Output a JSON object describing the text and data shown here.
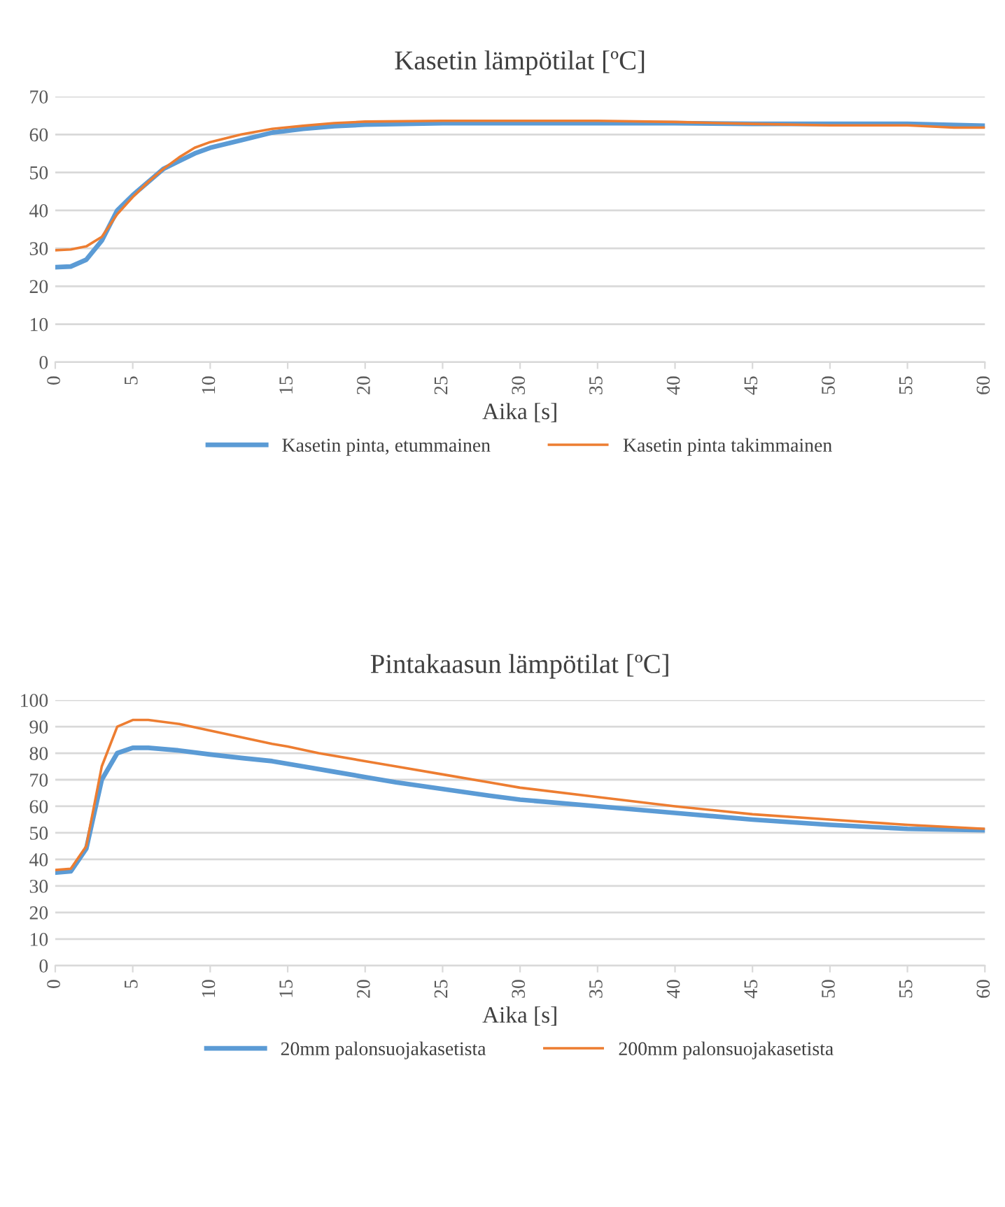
{
  "chart_data": [
    {
      "type": "line",
      "title": "Kasetin lämpötilat [ºC]",
      "xlabel": "Aika [s]",
      "xlim": [
        0,
        60
      ],
      "xticks": [
        0,
        5,
        10,
        15,
        20,
        25,
        30,
        35,
        40,
        45,
        50,
        55,
        60
      ],
      "ylim": [
        0,
        70
      ],
      "yticks": [
        0,
        10,
        20,
        30,
        40,
        50,
        60,
        70
      ],
      "grid": "y",
      "legend": "bottom",
      "series": [
        {
          "name": "Kasetin pinta, etummainen",
          "color": "#5b9bd5",
          "x": [
            0,
            1,
            2,
            3,
            4,
            5,
            6,
            7,
            8,
            9,
            10,
            12,
            14,
            16,
            18,
            20,
            25,
            30,
            35,
            40,
            45,
            50,
            55,
            60
          ],
          "values": [
            25,
            25.2,
            27,
            32,
            40,
            44,
            47.5,
            51,
            53,
            55,
            56.5,
            58.5,
            60.5,
            61.5,
            62.2,
            62.6,
            63,
            63,
            63,
            63,
            62.8,
            62.8,
            62.8,
            62.3
          ]
        },
        {
          "name": "Kasetin pinta takimmainen",
          "color": "#ed7d31",
          "x": [
            0,
            1,
            2,
            3,
            4,
            5,
            6,
            7,
            8,
            9,
            10,
            12,
            14,
            16,
            18,
            20,
            25,
            30,
            35,
            40,
            45,
            50,
            55,
            58,
            60
          ],
          "values": [
            29.5,
            29.7,
            30.5,
            33,
            39,
            43.5,
            47.5,
            51,
            54,
            56.5,
            58,
            60,
            61.5,
            62.3,
            63,
            63.4,
            63.6,
            63.6,
            63.6,
            63.3,
            62.8,
            62.4,
            62.4,
            61.8,
            61.8
          ]
        }
      ]
    },
    {
      "type": "line",
      "title": "Pintakaasun lämpötilat [ºC]",
      "xlabel": "Aika [s]",
      "xlim": [
        0,
        60
      ],
      "xticks": [
        0,
        5,
        10,
        15,
        20,
        25,
        30,
        35,
        40,
        45,
        50,
        55,
        60
      ],
      "ylim": [
        0,
        100
      ],
      "yticks": [
        0,
        10,
        20,
        30,
        40,
        50,
        60,
        70,
        80,
        90,
        100
      ],
      "grid": "y",
      "legend": "bottom",
      "series": [
        {
          "name": "20mm palonsuojakasetista",
          "color": "#5b9bd5",
          "x": [
            0,
            1,
            2,
            3,
            4,
            5,
            6,
            8,
            10,
            12,
            14,
            16,
            18,
            20,
            22,
            25,
            28,
            30,
            35,
            40,
            45,
            50,
            55,
            60
          ],
          "values": [
            35,
            35.5,
            44,
            70,
            80,
            82,
            82,
            81,
            79.5,
            78.2,
            77,
            75,
            73,
            71,
            69,
            66.5,
            64,
            62.5,
            60,
            57.5,
            55,
            53,
            51.5,
            51
          ]
        },
        {
          "name": "200mm palonsuojakasetista",
          "color": "#ed7d31",
          "x": [
            0,
            1,
            2,
            3,
            4,
            5,
            6,
            8,
            10,
            12,
            14,
            15,
            17,
            20,
            22,
            25,
            28,
            30,
            35,
            40,
            45,
            50,
            55,
            60
          ],
          "values": [
            36,
            36.5,
            45,
            75,
            90,
            92.5,
            92.5,
            91,
            88.5,
            86,
            83.5,
            82.5,
            80,
            77,
            75,
            72,
            69,
            67,
            63.5,
            60,
            57,
            55,
            53,
            51.5
          ]
        }
      ]
    }
  ]
}
